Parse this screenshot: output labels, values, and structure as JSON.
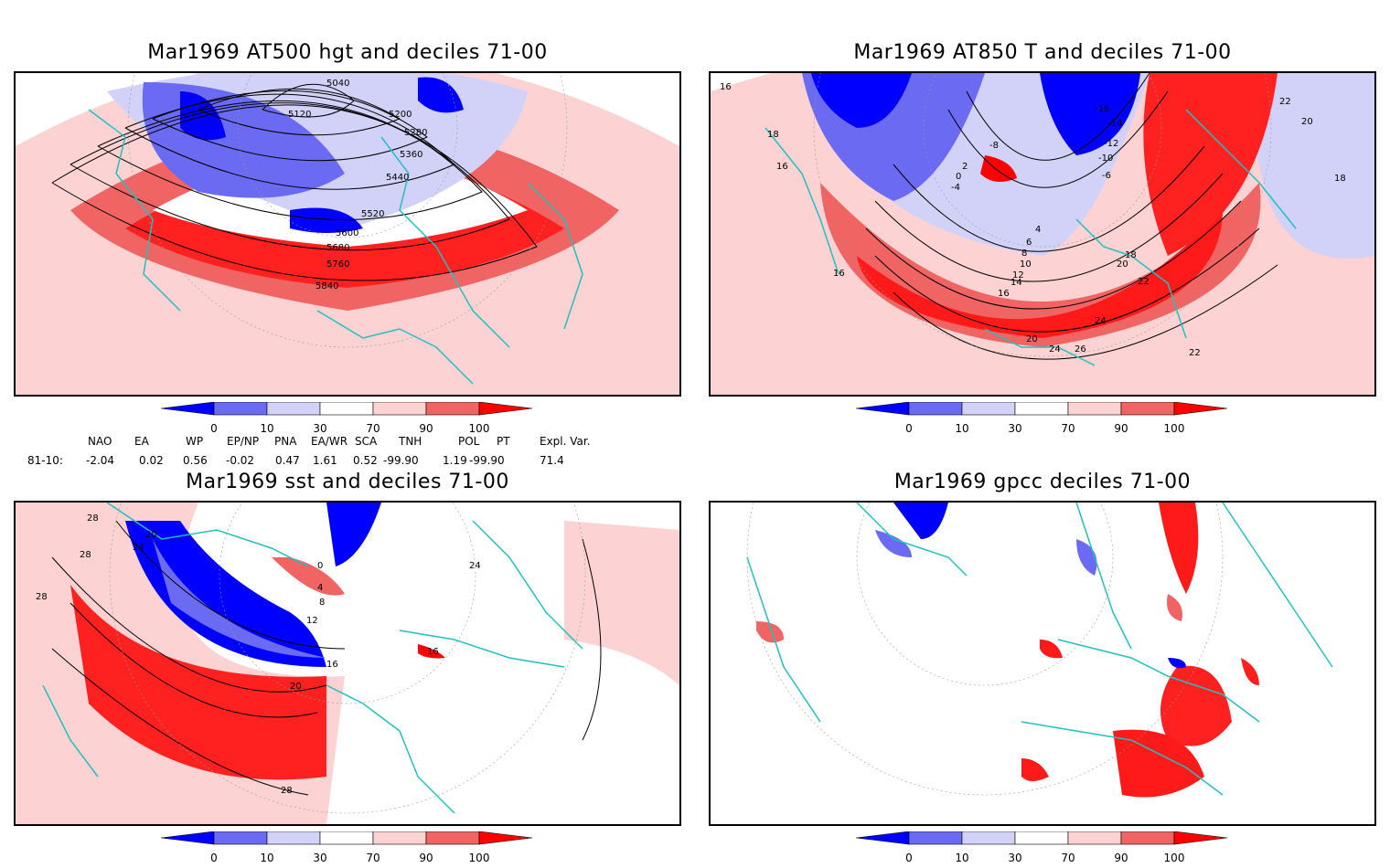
{
  "panels": [
    {
      "title": "Mar1969 AT500 hgt and deciles 71-00",
      "contour_labels": [
        "5040",
        "5120",
        "5200",
        "5280",
        "5360",
        "5440",
        "5520",
        "5600",
        "5680",
        "5760",
        "5840"
      ]
    },
    {
      "title": "Mar1969 AT850 T and deciles 71-00",
      "contour_labels": [
        "16",
        "18",
        "16",
        "-16",
        "-14",
        "-12",
        "-10",
        "-8",
        "-6",
        "-4",
        "0",
        "2",
        "4",
        "6",
        "8",
        "10",
        "12",
        "14",
        "16",
        "18",
        "20",
        "22",
        "24",
        "26",
        "22",
        "20",
        "24",
        "22",
        "20",
        "18",
        "16"
      ]
    },
    {
      "title": "Mar1969 sst and deciles 71-00",
      "contour_labels": [
        "28",
        "24",
        "20",
        "28",
        "28",
        "0",
        "4",
        "8",
        "12",
        "16",
        "20",
        "24",
        "28",
        "16"
      ]
    },
    {
      "title": "Mar1969 gpcc deciles 71-00",
      "contour_labels": []
    }
  ],
  "colorbar": {
    "ticks": [
      "0",
      "10",
      "30",
      "70",
      "90",
      "100"
    ],
    "colors": [
      "#0000ff",
      "#6a6af2",
      "#d2d2f8",
      "#ffffff",
      "#fcd2d2",
      "#f06464",
      "#ff0000"
    ]
  },
  "teleconnection": {
    "row_label": "81-10:",
    "headers": [
      "NAO",
      "EA",
      "WP",
      "EP/NP",
      "PNA",
      "EA/WR",
      "SCA",
      "TNH",
      "POL",
      "PT",
      "Expl. Var."
    ],
    "values": [
      "-2.04",
      "0.02",
      "0.56",
      "-0.02",
      "0.47",
      "1.61",
      "0.52",
      "-99.90",
      "1.19",
      "-99.90",
      "71.4"
    ]
  },
  "map_style": {
    "coast_color": "#22c0c0",
    "contour_color": "#000000"
  }
}
